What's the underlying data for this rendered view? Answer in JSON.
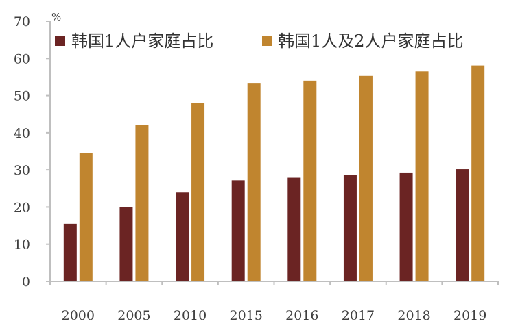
{
  "chart_data": {
    "type": "bar",
    "unit": "%",
    "categories": [
      "2000",
      "2005",
      "2010",
      "2015",
      "2016",
      "2017",
      "2018",
      "2019"
    ],
    "series": [
      {
        "name": "韩国1人户家庭占比",
        "color": "#6b2423",
        "values": [
          15.5,
          20.0,
          23.9,
          27.2,
          27.9,
          28.6,
          29.3,
          30.2
        ]
      },
      {
        "name": "韩国1人及2人户家庭占比",
        "color": "#c0852f",
        "values": [
          34.6,
          42.1,
          48.0,
          53.4,
          54.0,
          55.3,
          56.5,
          58.1
        ]
      }
    ],
    "ylim": [
      0,
      70
    ],
    "yticks": [
      "0",
      "10",
      "20",
      "30",
      "40",
      "50",
      "60",
      "70"
    ],
    "legend_position": "top",
    "grid": false
  }
}
